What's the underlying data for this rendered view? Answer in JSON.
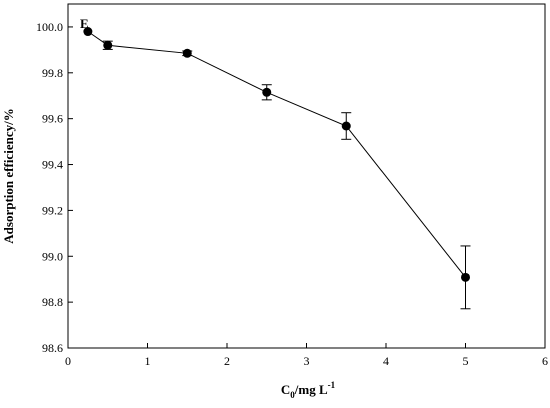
{
  "chart_data": {
    "type": "line",
    "panel_label": "E",
    "xlabel": {
      "main": "C",
      "subscript": "0",
      "rest": "/mg L",
      "superscript": "-1"
    },
    "ylabel": "Adsorption efficiency/%",
    "xlim": [
      0,
      6
    ],
    "ylim": [
      98.6,
      100.1
    ],
    "x_ticks": [
      "0",
      "1",
      "2",
      "3",
      "4",
      "5",
      "6"
    ],
    "y_ticks": [
      "98.6",
      "98.8",
      "99.0",
      "99.2",
      "99.4",
      "99.6",
      "99.8",
      "100.0"
    ],
    "grid": false,
    "series": [
      {
        "x": [
          0.25,
          0.5,
          1.5,
          2.5,
          3.5,
          5.0
        ],
        "y": [
          99.98,
          99.92,
          99.885,
          99.715,
          99.568,
          98.908
        ],
        "error": [
          0.0,
          0.018,
          0.01,
          0.033,
          0.058,
          0.137
        ],
        "color": "#000000",
        "marker": "filled-circle"
      }
    ]
  }
}
